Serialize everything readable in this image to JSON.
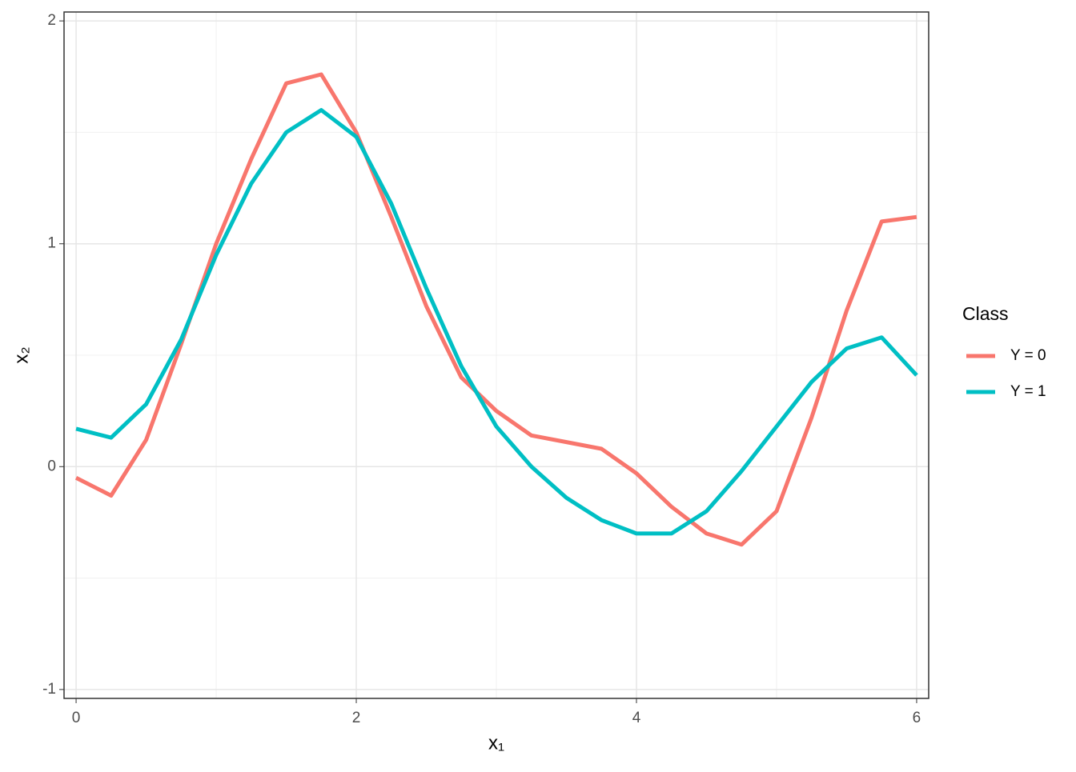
{
  "chart_data": {
    "type": "line",
    "x": [
      0,
      0.25,
      0.5,
      0.75,
      1,
      1.25,
      1.5,
      1.75,
      2,
      2.25,
      2.5,
      2.75,
      3,
      3.25,
      3.5,
      3.75,
      4,
      4.25,
      4.5,
      4.75,
      5,
      5.25,
      5.5,
      5.75,
      6
    ],
    "series": [
      {
        "name": "Y = 0",
        "color": "#F8766D",
        "values": [
          -0.05,
          -0.13,
          0.12,
          0.55,
          1.0,
          1.38,
          1.72,
          1.76,
          1.5,
          1.12,
          0.72,
          0.4,
          0.25,
          0.14,
          0.11,
          0.08,
          -0.03,
          -0.18,
          -0.3,
          -0.35,
          -0.2,
          0.22,
          0.7,
          1.1,
          1.12
        ]
      },
      {
        "name": "Y = 1",
        "color": "#00BFC4",
        "values": [
          0.17,
          0.13,
          0.28,
          0.57,
          0.95,
          1.27,
          1.5,
          1.6,
          1.48,
          1.18,
          0.8,
          0.45,
          0.18,
          0.0,
          -0.14,
          -0.24,
          -0.3,
          -0.3,
          -0.2,
          -0.02,
          0.18,
          0.38,
          0.53,
          0.58,
          0.41
        ]
      }
    ],
    "x_label": "x₁",
    "y_label": "x₂",
    "legend_title": "Class",
    "xlim": [
      -0.086,
      6.086
    ],
    "ylim": [
      -1.04,
      2.04
    ],
    "xticks": [
      0,
      2,
      4,
      6
    ],
    "yticks": [
      -1,
      0,
      1,
      2
    ],
    "xminor": [
      1,
      3,
      5
    ],
    "yminor": [
      -0.5,
      0.5,
      1.5
    ],
    "grid": true,
    "legend": "right"
  }
}
